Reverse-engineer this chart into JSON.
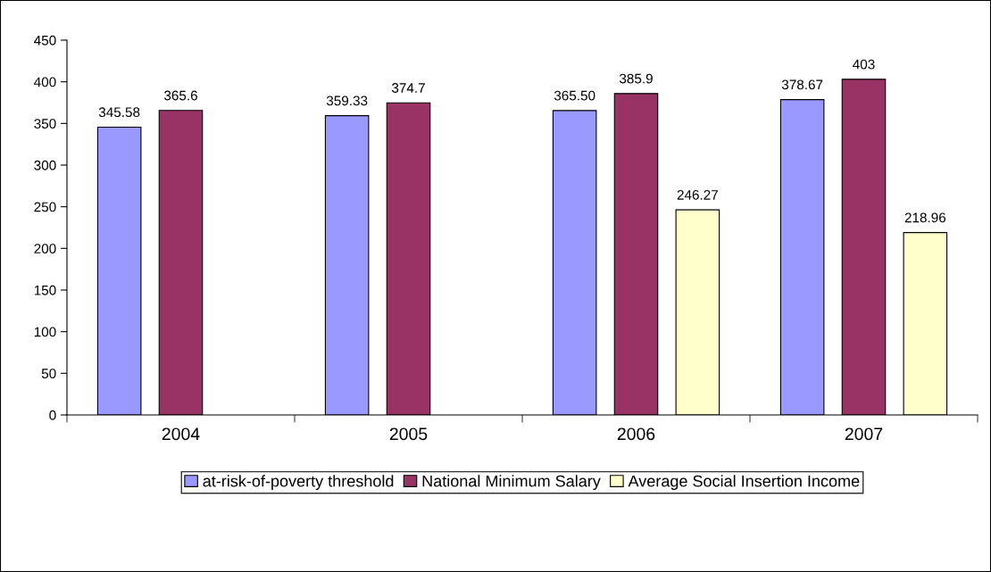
{
  "chart_data": {
    "type": "bar",
    "categories": [
      "2004",
      "2005",
      "2006",
      "2007"
    ],
    "series": [
      {
        "name": "at-risk-of-poverty threshold",
        "color": "#9999ff",
        "values": [
          345.58,
          359.33,
          365.5,
          378.67
        ],
        "value_labels": [
          "345.58",
          "359.33",
          "365.50",
          "378.67"
        ]
      },
      {
        "name": "National Minimum Salary",
        "color": "#993366",
        "values": [
          365.6,
          374.7,
          385.9,
          403
        ],
        "value_labels": [
          "365.6",
          "374.7",
          "385.9",
          "403"
        ]
      },
      {
        "name": "Average Social Insertion Income",
        "color": "#ffffcc",
        "values": [
          null,
          null,
          246.27,
          218.96
        ],
        "value_labels": [
          null,
          null,
          "246.27",
          "218.96"
        ]
      }
    ],
    "ylim": [
      0,
      450
    ],
    "yticks": [
      0,
      50,
      100,
      150,
      200,
      250,
      300,
      350,
      400,
      450
    ],
    "grid": false,
    "legend": "bottom"
  }
}
